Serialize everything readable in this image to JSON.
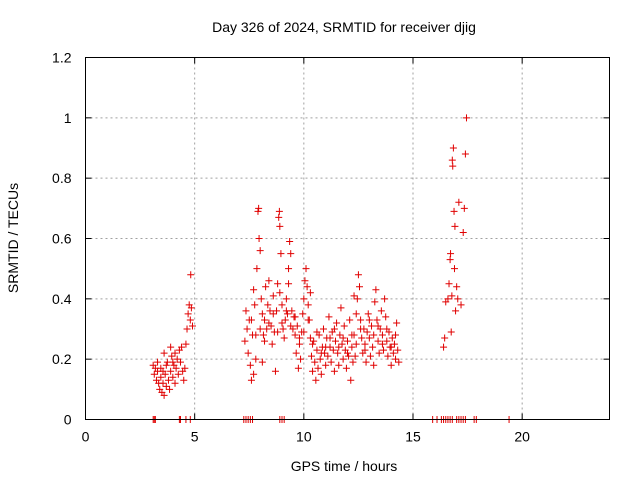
{
  "chart_data": {
    "type": "scatter",
    "title": "Day 326 of 2024, SRMTID for receiver djig",
    "xlabel": "GPS time / hours",
    "ylabel": "SRMTID / TECUs",
    "xlim": [
      0,
      24
    ],
    "ylim": [
      0,
      1.2
    ],
    "xticks": [
      0,
      5,
      10,
      15,
      20
    ],
    "xtick_labels": [
      "0",
      "5",
      "10",
      "15",
      "20"
    ],
    "yticks": [
      0,
      0.2,
      0.4,
      0.6,
      0.8,
      1.0,
      1.2
    ],
    "ytick_labels": [
      "0",
      "0.2",
      "0.4",
      "0.6",
      "0.8",
      "1",
      "1.2"
    ],
    "grid": true,
    "marker": "+",
    "series": [
      {
        "name": "SRMTID",
        "color": "#e00000",
        "points": [
          [
            3.1,
            0.0
          ],
          [
            3.15,
            0.0
          ],
          [
            3.2,
            0.0
          ],
          [
            4.3,
            0.0
          ],
          [
            4.35,
            0.0
          ],
          [
            4.6,
            0.0
          ],
          [
            4.8,
            0.0
          ],
          [
            7.25,
            0.0
          ],
          [
            7.35,
            0.0
          ],
          [
            7.45,
            0.0
          ],
          [
            7.55,
            0.0
          ],
          [
            7.65,
            0.0
          ],
          [
            8.9,
            0.0
          ],
          [
            9.0,
            0.0
          ],
          [
            9.1,
            0.0
          ],
          [
            15.9,
            0.0
          ],
          [
            16.1,
            0.0
          ],
          [
            16.3,
            0.0
          ],
          [
            16.4,
            0.0
          ],
          [
            16.5,
            0.0
          ],
          [
            16.6,
            0.0
          ],
          [
            16.7,
            0.0
          ],
          [
            16.8,
            0.0
          ],
          [
            17.0,
            0.0
          ],
          [
            17.1,
            0.0
          ],
          [
            17.2,
            0.0
          ],
          [
            17.3,
            0.0
          ],
          [
            17.4,
            0.0
          ],
          [
            17.8,
            0.0
          ],
          [
            17.9,
            0.0
          ],
          [
            19.4,
            0.0
          ],
          [
            3.1,
            0.18
          ],
          [
            3.15,
            0.15
          ],
          [
            3.2,
            0.17
          ],
          [
            3.25,
            0.13
          ],
          [
            3.3,
            0.16
          ],
          [
            3.35,
            0.12
          ],
          [
            3.4,
            0.1
          ],
          [
            3.45,
            0.14
          ],
          [
            3.5,
            0.09
          ],
          [
            3.55,
            0.12
          ],
          [
            3.6,
            0.08
          ],
          [
            3.65,
            0.15
          ],
          [
            3.7,
            0.11
          ],
          [
            3.75,
            0.19
          ],
          [
            3.8,
            0.13
          ],
          [
            3.85,
            0.1
          ],
          [
            3.9,
            0.16
          ],
          [
            3.95,
            0.21
          ],
          [
            4.0,
            0.14
          ],
          [
            4.05,
            0.18
          ],
          [
            4.1,
            0.12
          ],
          [
            4.15,
            0.17
          ],
          [
            4.2,
            0.2
          ],
          [
            4.25,
            0.15
          ],
          [
            4.3,
            0.23
          ],
          [
            4.35,
            0.19
          ],
          [
            4.4,
            0.24
          ],
          [
            4.45,
            0.16
          ],
          [
            4.5,
            0.13
          ],
          [
            4.55,
            0.17
          ],
          [
            4.6,
            0.25
          ],
          [
            4.65,
            0.3
          ],
          [
            4.7,
            0.35
          ],
          [
            4.75,
            0.38
          ],
          [
            4.8,
            0.33
          ],
          [
            4.82,
            0.48
          ],
          [
            4.85,
            0.37
          ],
          [
            4.9,
            0.31
          ],
          [
            3.3,
            0.19
          ],
          [
            3.45,
            0.17
          ],
          [
            3.6,
            0.22
          ],
          [
            3.7,
            0.18
          ],
          [
            3.9,
            0.24
          ],
          [
            4.0,
            0.19
          ],
          [
            4.1,
            0.22
          ],
          [
            3.55,
            0.16
          ],
          [
            7.3,
            0.26
          ],
          [
            7.35,
            0.36
          ],
          [
            7.4,
            0.3
          ],
          [
            7.45,
            0.22
          ],
          [
            7.5,
            0.33
          ],
          [
            7.55,
            0.18
          ],
          [
            7.6,
            0.13
          ],
          [
            7.65,
            0.28
          ],
          [
            7.7,
            0.43
          ],
          [
            7.75,
            0.38
          ],
          [
            7.8,
            0.2
          ],
          [
            7.85,
            0.5
          ],
          [
            7.9,
            0.69
          ],
          [
            7.93,
            0.7
          ],
          [
            7.95,
            0.6
          ],
          [
            8.0,
            0.56
          ],
          [
            8.05,
            0.4
          ],
          [
            8.1,
            0.35
          ],
          [
            8.15,
            0.28
          ],
          [
            8.2,
            0.33
          ],
          [
            8.25,
            0.44
          ],
          [
            8.3,
            0.3
          ],
          [
            8.35,
            0.38
          ],
          [
            8.4,
            0.46
          ],
          [
            8.45,
            0.36
          ],
          [
            8.5,
            0.31
          ],
          [
            8.55,
            0.25
          ],
          [
            8.6,
            0.41
          ],
          [
            8.65,
            0.29
          ],
          [
            8.7,
            0.16
          ],
          [
            8.75,
            0.36
          ],
          [
            8.8,
            0.45
          ],
          [
            8.85,
            0.67
          ],
          [
            8.88,
            0.69
          ],
          [
            8.9,
            0.64
          ],
          [
            8.95,
            0.55
          ],
          [
            9.0,
            0.38
          ],
          [
            9.05,
            0.3
          ],
          [
            9.1,
            0.27
          ],
          [
            9.15,
            0.33
          ],
          [
            9.2,
            0.4
          ],
          [
            9.25,
            0.35
          ],
          [
            9.3,
            0.45
          ],
          [
            9.35,
            0.59
          ],
          [
            9.4,
            0.55
          ],
          [
            9.45,
            0.36
          ],
          [
            9.5,
            0.3
          ],
          [
            9.55,
            0.34
          ],
          [
            9.6,
            0.28
          ],
          [
            9.65,
            0.22
          ],
          [
            9.7,
            0.31
          ],
          [
            9.75,
            0.17
          ],
          [
            9.8,
            0.25
          ],
          [
            9.85,
            0.2
          ],
          [
            9.9,
            0.29
          ],
          [
            9.95,
            0.35
          ],
          [
            10.0,
            0.4
          ],
          [
            10.05,
            0.46
          ],
          [
            10.1,
            0.5
          ],
          [
            10.15,
            0.44
          ],
          [
            10.2,
            0.38
          ],
          [
            10.25,
            0.33
          ],
          [
            10.3,
            0.27
          ],
          [
            10.35,
            0.21
          ],
          [
            10.4,
            0.16
          ],
          [
            10.45,
            0.26
          ],
          [
            10.5,
            0.19
          ],
          [
            10.55,
            0.13
          ],
          [
            10.6,
            0.23
          ],
          [
            10.65,
            0.17
          ],
          [
            10.7,
            0.28
          ],
          [
            10.75,
            0.2
          ],
          [
            10.8,
            0.15
          ],
          [
            10.85,
            0.24
          ],
          [
            10.9,
            0.3
          ],
          [
            10.95,
            0.22
          ],
          [
            11.0,
            0.18
          ],
          [
            11.05,
            0.27
          ],
          [
            11.1,
            0.21
          ],
          [
            11.15,
            0.34
          ],
          [
            11.2,
            0.24
          ],
          [
            11.25,
            0.19
          ],
          [
            11.3,
            0.29
          ],
          [
            11.35,
            0.23
          ],
          [
            11.4,
            0.16
          ],
          [
            11.45,
            0.26
          ],
          [
            11.5,
            0.32
          ],
          [
            11.55,
            0.22
          ],
          [
            11.6,
            0.18
          ],
          [
            11.65,
            0.28
          ],
          [
            11.7,
            0.37
          ],
          [
            11.75,
            0.25
          ],
          [
            11.8,
            0.2
          ],
          [
            11.85,
            0.31
          ],
          [
            11.9,
            0.23
          ],
          [
            11.95,
            0.17
          ],
          [
            12.0,
            0.26
          ],
          [
            12.05,
            0.21
          ],
          [
            12.1,
            0.33
          ],
          [
            12.15,
            0.13
          ],
          [
            12.2,
            0.24
          ],
          [
            12.25,
            0.19
          ],
          [
            12.3,
            0.28
          ],
          [
            12.35,
            0.21
          ],
          [
            12.4,
            0.35
          ],
          [
            12.45,
            0.4
          ],
          [
            12.5,
            0.48
          ],
          [
            12.55,
            0.44
          ],
          [
            12.6,
            0.33
          ],
          [
            12.65,
            0.27
          ],
          [
            12.7,
            0.22
          ],
          [
            12.75,
            0.3
          ],
          [
            12.8,
            0.25
          ],
          [
            12.85,
            0.19
          ],
          [
            12.9,
            0.29
          ],
          [
            12.95,
            0.35
          ],
          [
            13.0,
            0.27
          ],
          [
            13.05,
            0.21
          ],
          [
            13.1,
            0.31
          ],
          [
            13.15,
            0.24
          ],
          [
            13.2,
            0.18
          ],
          [
            13.25,
            0.39
          ],
          [
            13.3,
            0.43
          ],
          [
            13.35,
            0.33
          ],
          [
            13.4,
            0.26
          ],
          [
            13.45,
            0.22
          ],
          [
            13.5,
            0.3
          ],
          [
            13.55,
            0.36
          ],
          [
            13.6,
            0.28
          ],
          [
            13.65,
            0.23
          ],
          [
            13.7,
            0.4
          ],
          [
            13.75,
            0.34
          ],
          [
            13.8,
            0.26
          ],
          [
            13.85,
            0.21
          ],
          [
            13.9,
            0.29
          ],
          [
            13.95,
            0.24
          ],
          [
            14.0,
            0.18
          ],
          [
            14.05,
            0.27
          ],
          [
            14.1,
            0.22
          ],
          [
            14.15,
            0.25
          ],
          [
            14.2,
            0.2
          ],
          [
            14.25,
            0.32
          ],
          [
            14.3,
            0.23
          ],
          [
            14.35,
            0.19
          ],
          [
            7.6,
            0.33
          ],
          [
            7.8,
            0.28
          ],
          [
            8.0,
            0.3
          ],
          [
            8.2,
            0.26
          ],
          [
            8.4,
            0.32
          ],
          [
            8.6,
            0.35
          ],
          [
            8.8,
            0.29
          ],
          [
            9.0,
            0.32
          ],
          [
            9.2,
            0.36
          ],
          [
            9.4,
            0.31
          ],
          [
            9.6,
            0.34
          ],
          [
            9.8,
            0.27
          ],
          [
            10.0,
            0.29
          ],
          [
            10.2,
            0.33
          ],
          [
            10.4,
            0.25
          ],
          [
            10.6,
            0.29
          ],
          [
            10.8,
            0.22
          ],
          [
            11.0,
            0.24
          ],
          [
            11.2,
            0.27
          ],
          [
            11.4,
            0.3
          ],
          [
            11.6,
            0.24
          ],
          [
            11.8,
            0.27
          ],
          [
            12.0,
            0.22
          ],
          [
            12.2,
            0.28
          ],
          [
            12.4,
            0.25
          ],
          [
            12.6,
            0.3
          ],
          [
            12.8,
            0.23
          ],
          [
            13.0,
            0.33
          ],
          [
            13.2,
            0.28
          ],
          [
            13.4,
            0.31
          ],
          [
            13.6,
            0.25
          ],
          [
            13.8,
            0.3
          ],
          [
            14.0,
            0.24
          ],
          [
            14.2,
            0.28
          ],
          [
            7.7,
            0.15
          ],
          [
            8.1,
            0.19
          ],
          [
            8.9,
            0.42
          ],
          [
            9.3,
            0.5
          ],
          [
            10.3,
            0.42
          ],
          [
            12.3,
            0.41
          ],
          [
            16.4,
            0.24
          ],
          [
            16.45,
            0.27
          ],
          [
            16.5,
            0.39
          ],
          [
            16.6,
            0.4
          ],
          [
            16.65,
            0.45
          ],
          [
            16.7,
            0.53
          ],
          [
            16.72,
            0.55
          ],
          [
            16.75,
            0.29
          ],
          [
            16.78,
            0.41
          ],
          [
            16.8,
            0.86
          ],
          [
            16.82,
            0.84
          ],
          [
            16.85,
            0.9
          ],
          [
            16.88,
            0.69
          ],
          [
            16.9,
            0.5
          ],
          [
            16.92,
            0.64
          ],
          [
            16.95,
            0.36
          ],
          [
            17.0,
            0.44
          ],
          [
            17.05,
            0.4
          ],
          [
            17.1,
            0.72
          ],
          [
            17.2,
            0.38
          ],
          [
            17.3,
            0.62
          ],
          [
            17.35,
            0.7
          ],
          [
            17.4,
            0.88
          ],
          [
            17.45,
            1.0
          ]
        ]
      }
    ]
  }
}
